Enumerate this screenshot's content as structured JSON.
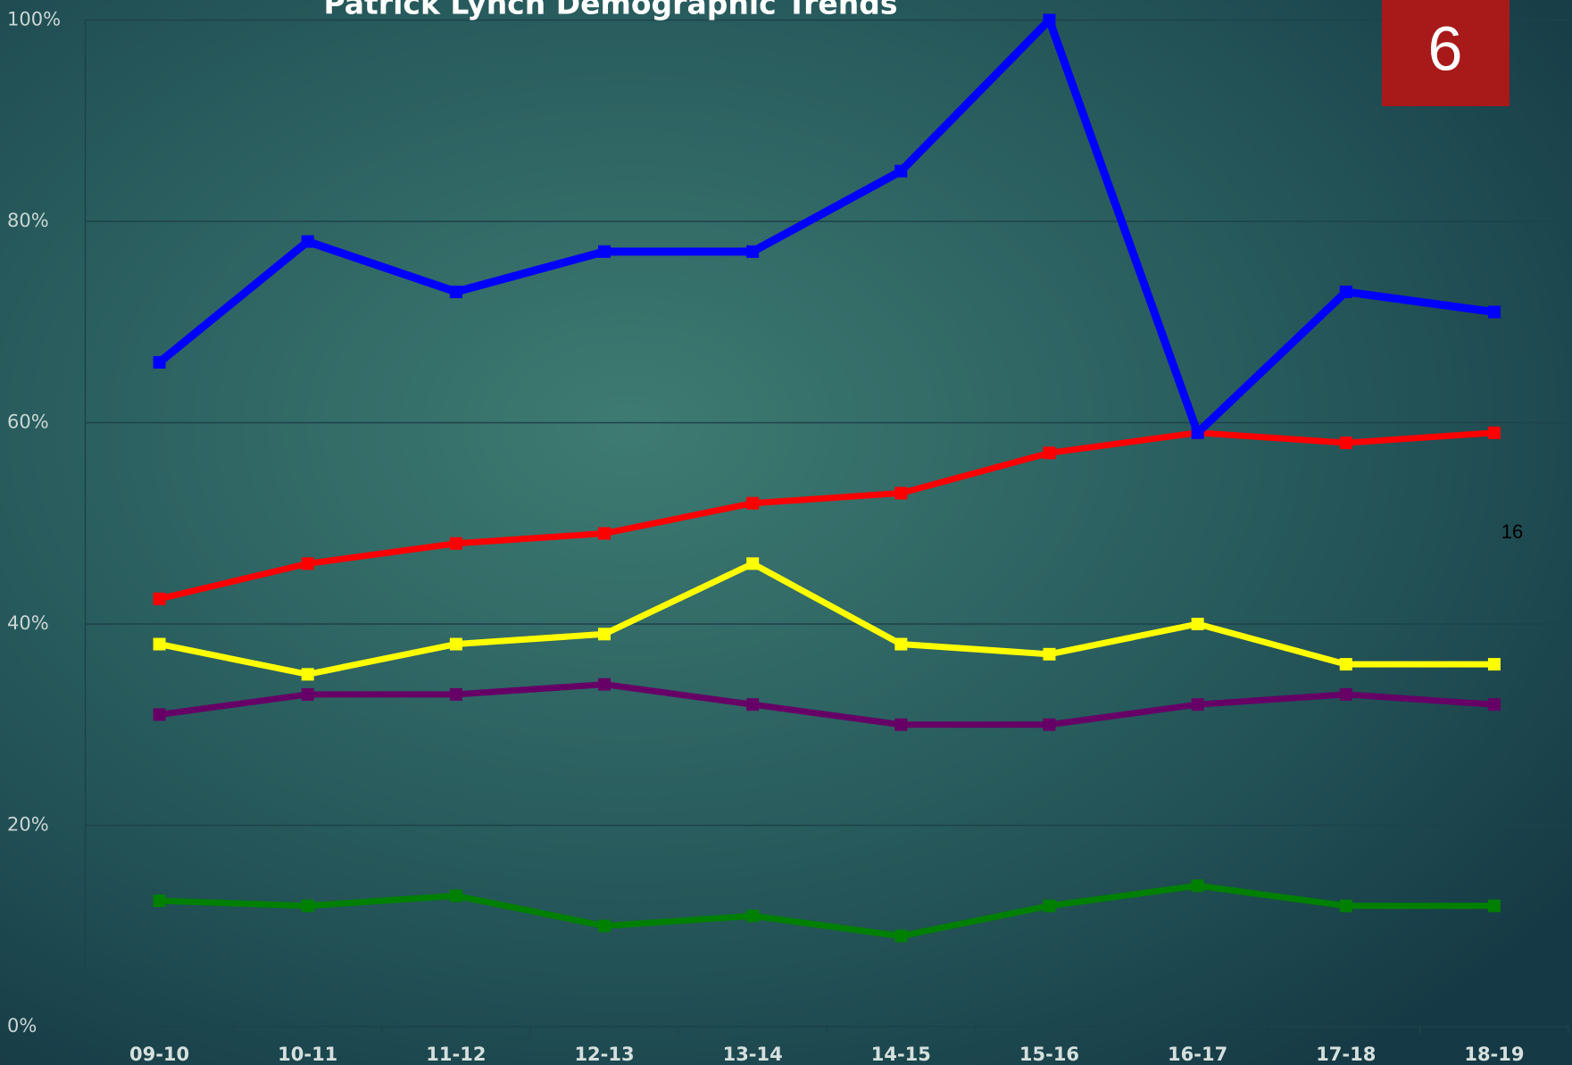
{
  "chart_data": {
    "type": "line",
    "title": "Patrick Lynch Demographic Trends",
    "categories": [
      "09-10",
      "10-11",
      "11-12",
      "12-13",
      "13-14",
      "14-15",
      "15-16",
      "16-17",
      "17-18",
      "18-19"
    ],
    "series": [
      {
        "color": "#0000ff",
        "values": [
          66,
          78,
          73,
          77,
          77,
          85,
          100,
          59,
          73,
          71
        ]
      },
      {
        "color": "#ff0000",
        "values": [
          42.5,
          46,
          48,
          49,
          52,
          53,
          57,
          59,
          58,
          59
        ]
      },
      {
        "color": "#ffff00",
        "values": [
          38,
          35,
          38,
          39,
          46,
          38,
          37,
          40,
          36,
          36
        ]
      },
      {
        "color": "#660066",
        "values": [
          31,
          33,
          33,
          34,
          32,
          30,
          30,
          32,
          33,
          32
        ]
      },
      {
        "color": "#008000",
        "values": [
          12.5,
          12,
          13,
          10,
          11,
          9,
          12,
          14,
          12,
          12
        ]
      }
    ],
    "ylim": [
      0,
      100
    ],
    "yticks": [
      {
        "value": 0,
        "label": "0%"
      },
      {
        "value": 20,
        "label": "20%"
      },
      {
        "value": 40,
        "label": "40%"
      },
      {
        "value": 60,
        "label": "60%"
      },
      {
        "value": 80,
        "label": "80%"
      },
      {
        "value": 100,
        "label": "100%"
      }
    ],
    "grid": true
  },
  "slide_number": "6",
  "annotation": "16"
}
